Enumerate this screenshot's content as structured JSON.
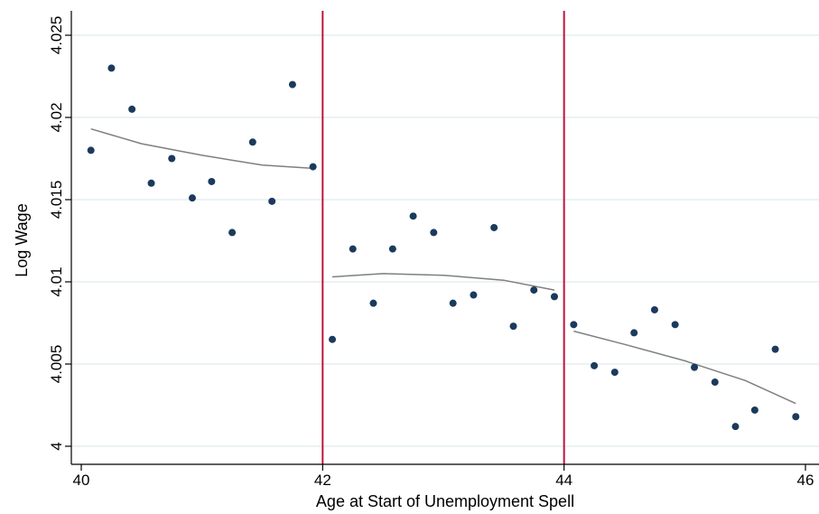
{
  "chart_data": {
    "type": "scatter",
    "title": "",
    "xlabel": "Age at Start of Unemployment Spell",
    "ylabel": "Log Wage",
    "xlim": [
      40,
      46
    ],
    "ylim": [
      4.0,
      4.025
    ],
    "x_ticks": [
      40,
      42,
      44,
      46
    ],
    "x_tick_labels": [
      "40",
      "42",
      "44",
      "46"
    ],
    "y_ticks": [
      4.0,
      4.005,
      4.01,
      4.015,
      4.02,
      4.025
    ],
    "y_tick_labels": [
      "4",
      "4.005",
      "4.01",
      "4.015",
      "4.02",
      "4.025"
    ],
    "grid": "horizontal",
    "cutoffs": [
      42,
      44
    ],
    "colors": {
      "points": "#1b3a5c",
      "fit": "#7f7f7f",
      "cutoff": "#c0143c",
      "grid": "#e6edf2",
      "axis": "#000000"
    },
    "points": [
      {
        "x": 40.08,
        "y": 4.018
      },
      {
        "x": 40.25,
        "y": 4.023
      },
      {
        "x": 40.42,
        "y": 4.0205
      },
      {
        "x": 40.58,
        "y": 4.016
      },
      {
        "x": 40.75,
        "y": 4.0175
      },
      {
        "x": 40.92,
        "y": 4.0151
      },
      {
        "x": 41.08,
        "y": 4.0161
      },
      {
        "x": 41.25,
        "y": 4.013
      },
      {
        "x": 41.42,
        "y": 4.0185
      },
      {
        "x": 41.58,
        "y": 4.0149
      },
      {
        "x": 41.75,
        "y": 4.022
      },
      {
        "x": 41.92,
        "y": 4.017
      },
      {
        "x": 42.08,
        "y": 4.0065
      },
      {
        "x": 42.25,
        "y": 4.012
      },
      {
        "x": 42.42,
        "y": 4.0087
      },
      {
        "x": 42.58,
        "y": 4.012
      },
      {
        "x": 42.75,
        "y": 4.014
      },
      {
        "x": 42.92,
        "y": 4.013
      },
      {
        "x": 43.08,
        "y": 4.0087
      },
      {
        "x": 43.25,
        "y": 4.0092
      },
      {
        "x": 43.42,
        "y": 4.0133
      },
      {
        "x": 43.58,
        "y": 4.0073
      },
      {
        "x": 43.75,
        "y": 4.0095
      },
      {
        "x": 43.92,
        "y": 4.0091
      },
      {
        "x": 44.08,
        "y": 4.0074
      },
      {
        "x": 44.25,
        "y": 4.0049
      },
      {
        "x": 44.42,
        "y": 4.0045
      },
      {
        "x": 44.58,
        "y": 4.0069
      },
      {
        "x": 44.75,
        "y": 4.0083
      },
      {
        "x": 44.92,
        "y": 4.0074
      },
      {
        "x": 45.08,
        "y": 4.0048
      },
      {
        "x": 45.25,
        "y": 4.0039
      },
      {
        "x": 45.42,
        "y": 4.0012
      },
      {
        "x": 45.58,
        "y": 4.0022
      },
      {
        "x": 45.75,
        "y": 4.0059
      },
      {
        "x": 45.92,
        "y": 4.0018
      }
    ],
    "fit_lines": [
      {
        "points": [
          [
            40.08,
            4.0193
          ],
          [
            40.5,
            4.0184
          ],
          [
            41.0,
            4.0177
          ],
          [
            41.5,
            4.0171
          ],
          [
            41.92,
            4.0169
          ]
        ]
      },
      {
        "points": [
          [
            42.08,
            4.0103
          ],
          [
            42.5,
            4.0105
          ],
          [
            43.0,
            4.0104
          ],
          [
            43.5,
            4.0101
          ],
          [
            43.92,
            4.0095
          ]
        ]
      },
      {
        "points": [
          [
            44.08,
            4.007
          ],
          [
            44.5,
            4.0062
          ],
          [
            45.0,
            4.0052
          ],
          [
            45.5,
            4.004
          ],
          [
            45.92,
            4.0026
          ]
        ]
      }
    ]
  }
}
